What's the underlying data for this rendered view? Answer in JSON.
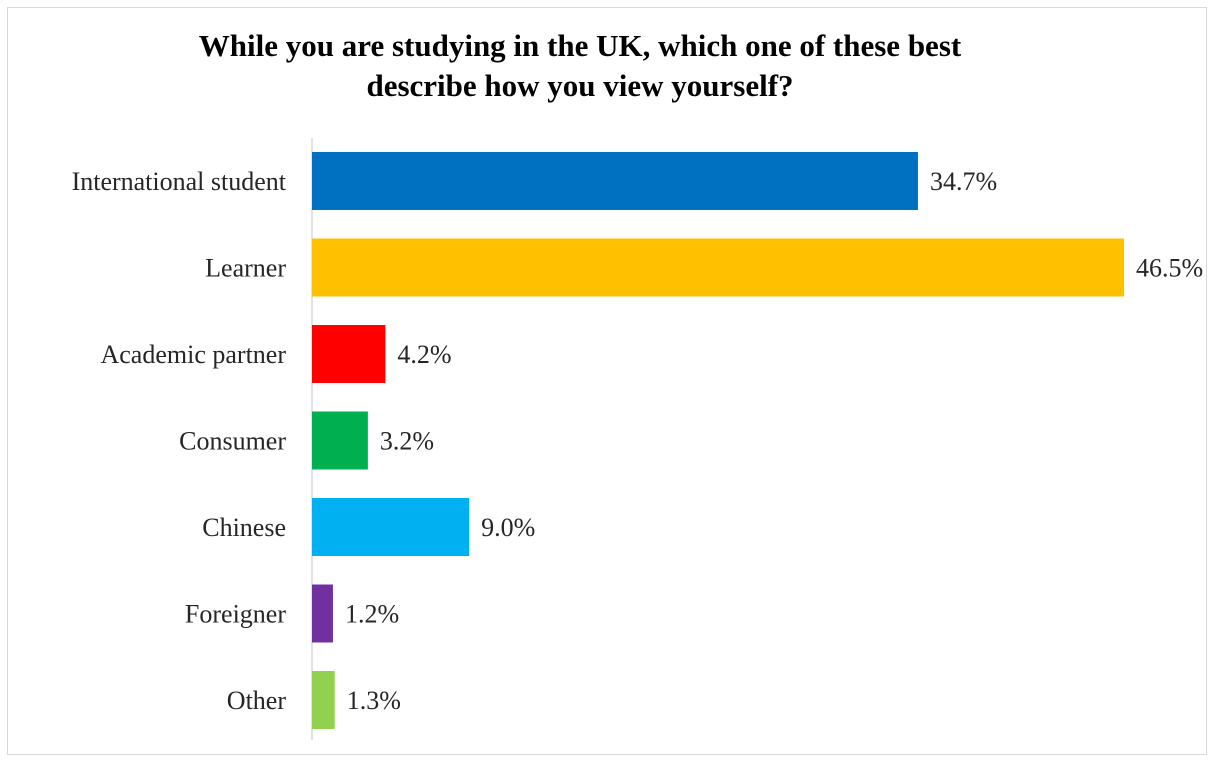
{
  "chart_data": {
    "type": "bar",
    "orientation": "horizontal",
    "title": "While you are studying in the UK, which one of these best\ndescribe how you view yourself?",
    "categories": [
      "International student",
      "Learner",
      "Academic partner",
      "Consumer",
      "Chinese",
      "Foreigner",
      "Other"
    ],
    "values": [
      34.7,
      46.5,
      4.2,
      3.2,
      9.0,
      1.2,
      1.3
    ],
    "data_labels": [
      "34.7%",
      "46.5%",
      "4.2%",
      "3.2%",
      "9.0%",
      "1.2%",
      "1.3%"
    ],
    "colors": [
      "#0070C0",
      "#FFC000",
      "#FF0000",
      "#00B050",
      "#00B0F0",
      "#7030A0",
      "#92D050"
    ],
    "xlabel": "",
    "ylabel": "",
    "xlim": [
      0,
      46.5
    ],
    "grid": false,
    "legend": "none"
  }
}
